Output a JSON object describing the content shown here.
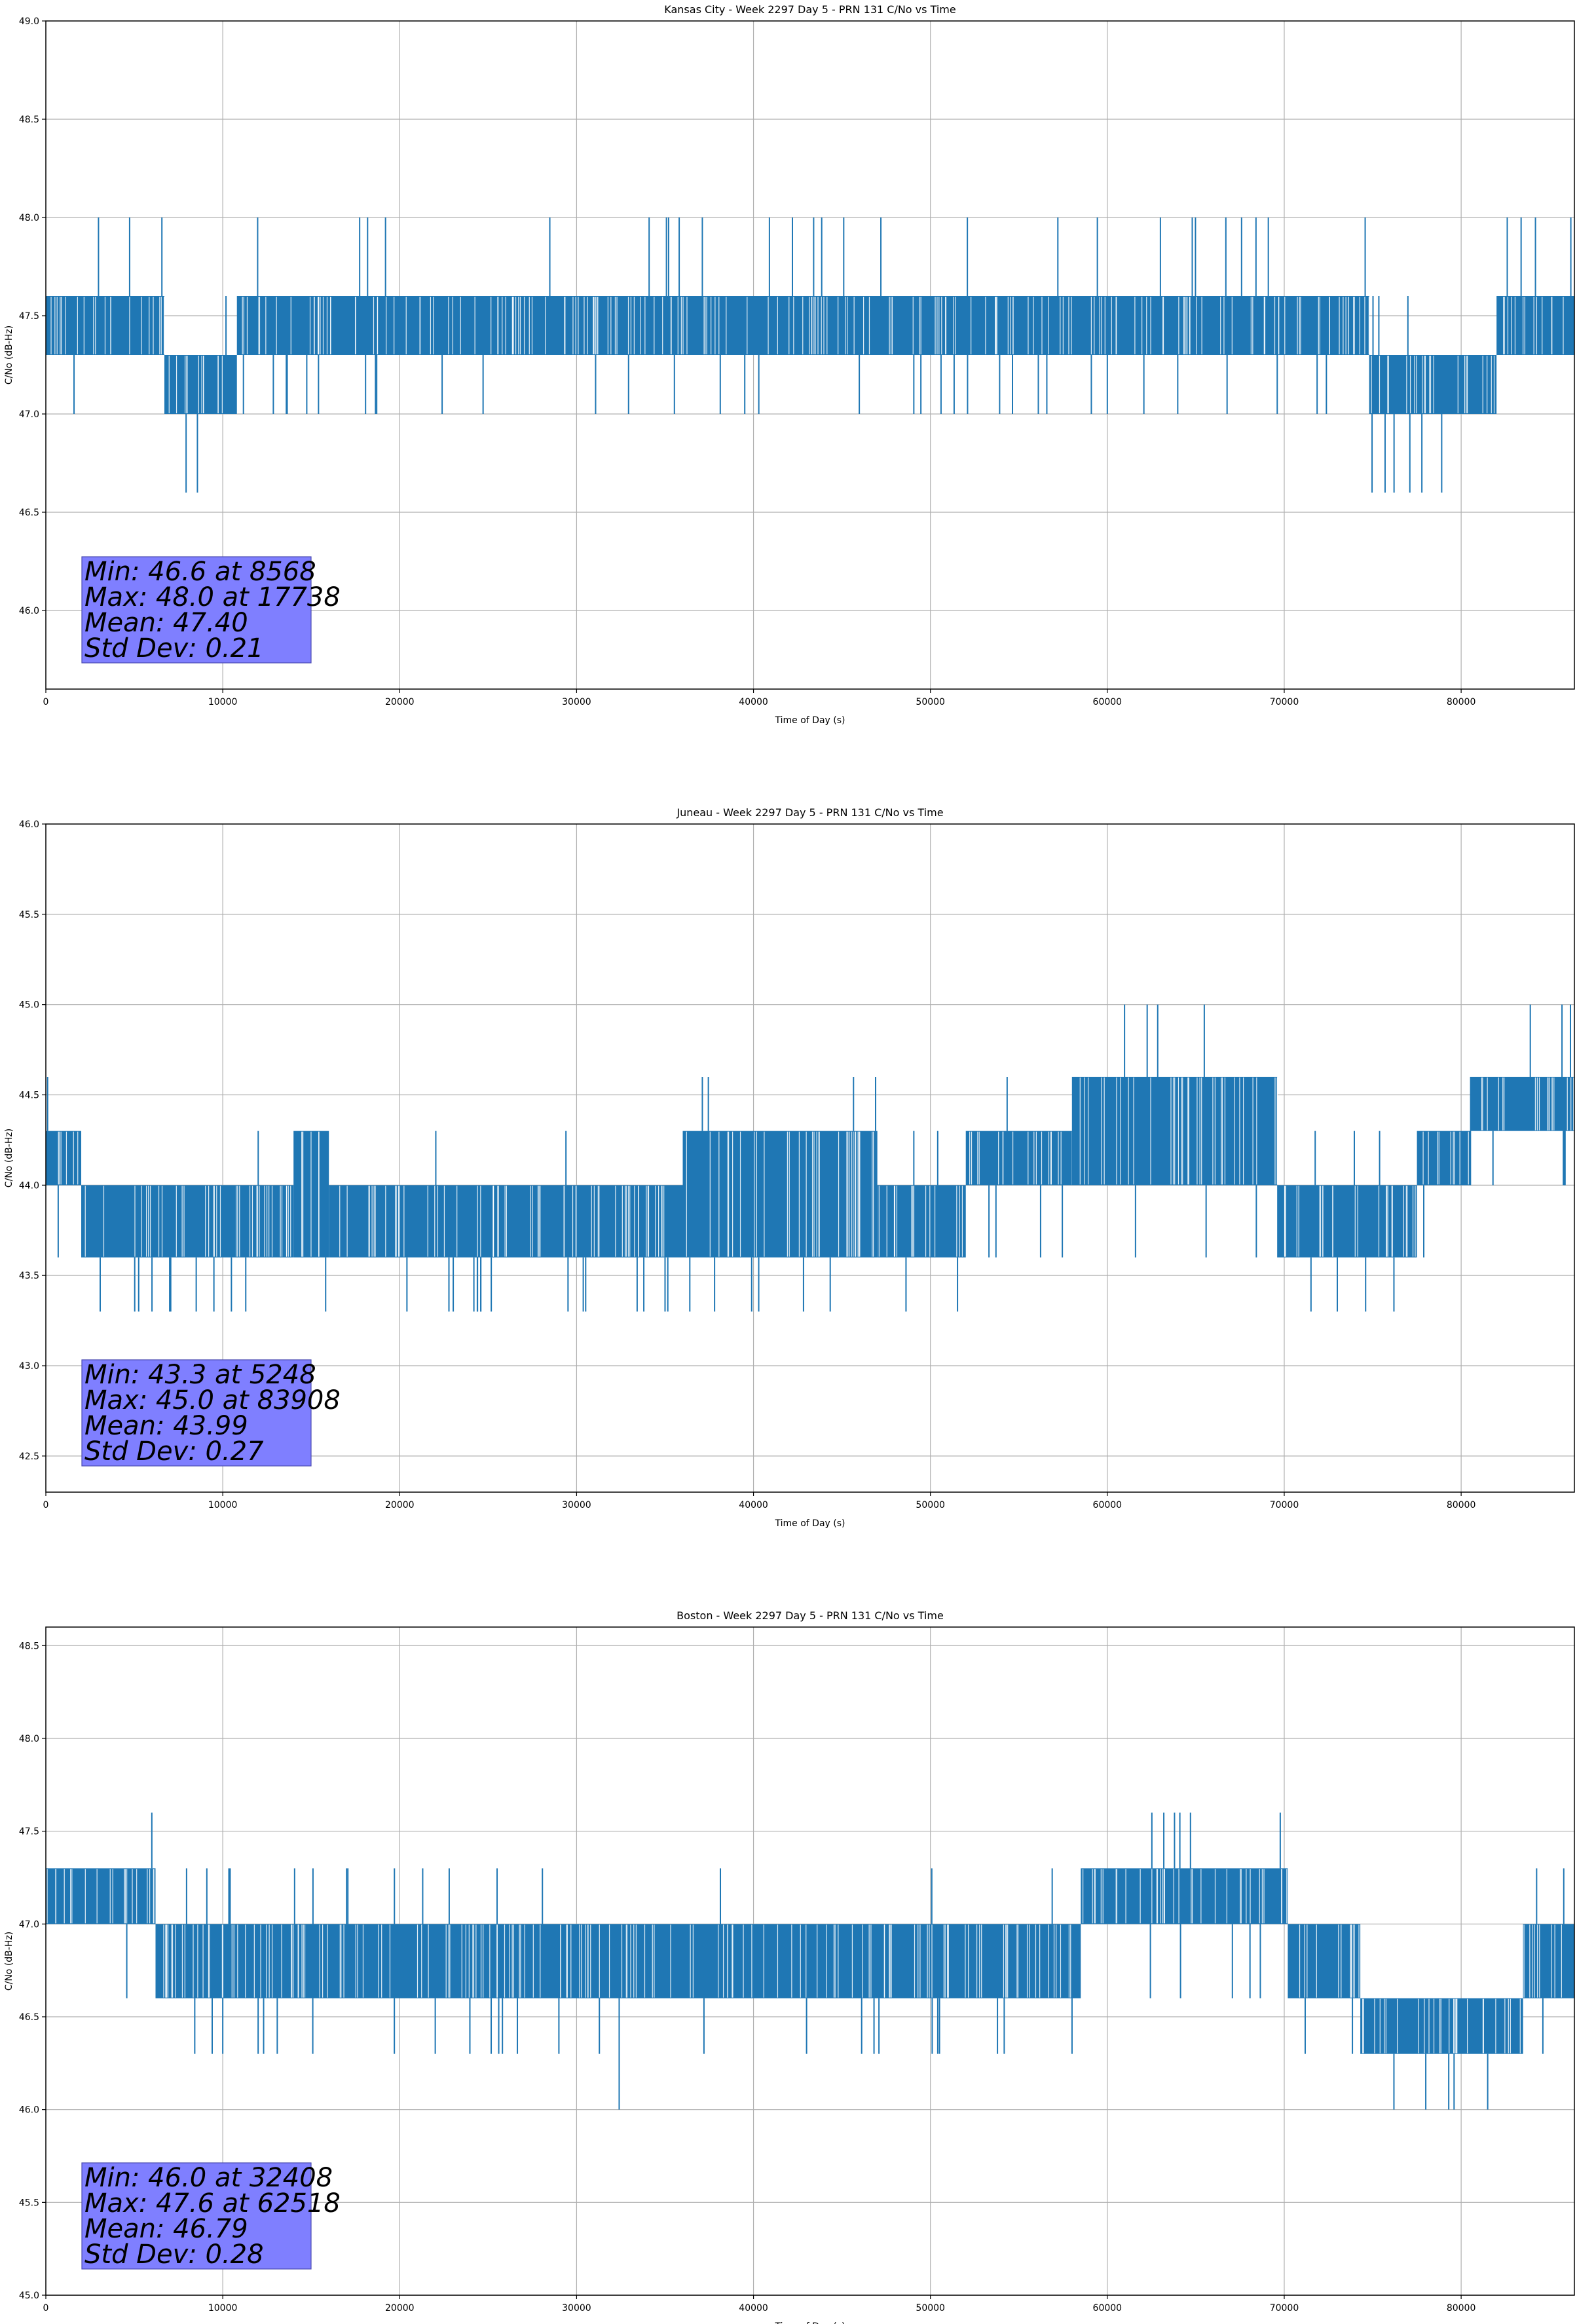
{
  "chart_data": [
    {
      "type": "line",
      "title": "Kansas City - Week 2297 Day 5 - PRN 131 C/No vs Time",
      "xlabel": "Time of Day (s)",
      "ylabel": "C/No (dB-Hz)",
      "xlim": [
        0,
        86400
      ],
      "ylim": [
        45.6,
        49.0
      ],
      "xticks": [
        0,
        10000,
        20000,
        30000,
        40000,
        50000,
        60000,
        70000,
        80000
      ],
      "xtick_labels": [
        "0",
        "10000",
        "20000",
        "30000",
        "40000",
        "50000",
        "60000",
        "70000",
        "80000"
      ],
      "yticks": [
        46.0,
        46.5,
        47.0,
        47.5,
        48.0,
        48.5,
        49.0
      ],
      "ytick_labels": [
        "46.0",
        "46.5",
        "47.0",
        "47.5",
        "48.0",
        "48.5",
        "49.0"
      ],
      "grid": true,
      "color": "#1f77b4",
      "levels": [
        46.6,
        47.0,
        47.3,
        47.6,
        48.0
      ],
      "band_segments": [
        {
          "x0": 0,
          "x1": 6700,
          "lo": 47.3,
          "hi": 47.6
        },
        {
          "x0": 6700,
          "x1": 10800,
          "lo": 47.0,
          "hi": 47.3
        },
        {
          "x0": 10800,
          "x1": 74800,
          "lo": 47.3,
          "hi": 47.6
        },
        {
          "x0": 74800,
          "x1": 82000,
          "lo": 47.0,
          "hi": 47.3
        },
        {
          "x0": 82000,
          "x1": 86400,
          "lo": 47.3,
          "hi": 47.6
        }
      ],
      "spikes": [
        {
          "x": 8568,
          "y": 46.6
        },
        {
          "x": 17738,
          "y": 48.0
        },
        {
          "x": 19200,
          "y": 48.0
        },
        {
          "x": 22400,
          "y": 47.0
        },
        {
          "x": 34100,
          "y": 48.0
        },
        {
          "x": 35200,
          "y": 48.0
        },
        {
          "x": 35800,
          "y": 48.0
        },
        {
          "x": 40300,
          "y": 47.0
        },
        {
          "x": 40900,
          "y": 48.0
        },
        {
          "x": 42200,
          "y": 48.0
        },
        {
          "x": 43400,
          "y": 48.0
        },
        {
          "x": 45100,
          "y": 48.0
        },
        {
          "x": 47200,
          "y": 48.0
        },
        {
          "x": 50600,
          "y": 47.0
        },
        {
          "x": 52100,
          "y": 47.0
        },
        {
          "x": 56100,
          "y": 47.0
        },
        {
          "x": 60000,
          "y": 47.0
        },
        {
          "x": 63000,
          "y": 48.0
        },
        {
          "x": 64800,
          "y": 48.0
        },
        {
          "x": 66700,
          "y": 48.0
        },
        {
          "x": 69100,
          "y": 48.0
        },
        {
          "x": 75700,
          "y": 46.6
        },
        {
          "x": 77100,
          "y": 46.6
        },
        {
          "x": 78900,
          "y": 46.6
        },
        {
          "x": 84200,
          "y": 48.0
        },
        {
          "x": 86200,
          "y": 48.0
        }
      ],
      "stats": {
        "min": "Min: 46.6 at 8568",
        "max": "Max: 48.0 at 17738",
        "mean": "Mean: 47.40",
        "std": "Std Dev: 0.21"
      }
    },
    {
      "type": "line",
      "title": "Juneau - Week 2297 Day 5 - PRN 131 C/No vs Time",
      "xlabel": "Time of Day (s)",
      "ylabel": "C/No (dB-Hz)",
      "xlim": [
        0,
        86400
      ],
      "ylim": [
        42.3,
        46.0
      ],
      "xticks": [
        0,
        10000,
        20000,
        30000,
        40000,
        50000,
        60000,
        70000,
        80000
      ],
      "xtick_labels": [
        "0",
        "10000",
        "20000",
        "30000",
        "40000",
        "50000",
        "60000",
        "70000",
        "80000"
      ],
      "yticks": [
        42.5,
        43.0,
        43.5,
        44.0,
        44.5,
        45.0,
        45.5,
        46.0
      ],
      "ytick_labels": [
        "42.5",
        "43.0",
        "43.5",
        "44.0",
        "44.5",
        "45.0",
        "45.5",
        "46.0"
      ],
      "grid": true,
      "color": "#1f77b4",
      "levels": [
        43.3,
        43.6,
        44.0,
        44.3,
        44.6,
        45.0
      ],
      "band_segments": [
        {
          "x0": 0,
          "x1": 2000,
          "lo": 44.0,
          "hi": 44.3
        },
        {
          "x0": 2000,
          "x1": 14000,
          "lo": 43.6,
          "hi": 44.0
        },
        {
          "x0": 14000,
          "x1": 16000,
          "lo": 43.6,
          "hi": 44.3
        },
        {
          "x0": 16000,
          "x1": 36000,
          "lo": 43.6,
          "hi": 44.0
        },
        {
          "x0": 36000,
          "x1": 47000,
          "lo": 43.6,
          "hi": 44.3
        },
        {
          "x0": 47000,
          "x1": 52000,
          "lo": 43.6,
          "hi": 44.0
        },
        {
          "x0": 52000,
          "x1": 58000,
          "lo": 44.0,
          "hi": 44.3
        },
        {
          "x0": 58000,
          "x1": 69600,
          "lo": 44.0,
          "hi": 44.6
        },
        {
          "x0": 69600,
          "x1": 77500,
          "lo": 43.6,
          "hi": 44.0
        },
        {
          "x0": 77500,
          "x1": 80500,
          "lo": 44.0,
          "hi": 44.3
        },
        {
          "x0": 80500,
          "x1": 86400,
          "lo": 44.3,
          "hi": 44.6
        }
      ],
      "spikes": [
        {
          "x": 5248,
          "y": 43.3
        },
        {
          "x": 6000,
          "y": 43.3
        },
        {
          "x": 7000,
          "y": 43.3
        },
        {
          "x": 8500,
          "y": 43.3
        },
        {
          "x": 9500,
          "y": 43.3
        },
        {
          "x": 11300,
          "y": 43.3
        },
        {
          "x": 24400,
          "y": 43.3
        },
        {
          "x": 33800,
          "y": 43.3
        },
        {
          "x": 35000,
          "y": 43.3
        },
        {
          "x": 36400,
          "y": 43.3
        },
        {
          "x": 37800,
          "y": 43.3
        },
        {
          "x": 73000,
          "y": 43.3
        },
        {
          "x": 74600,
          "y": 43.3
        },
        {
          "x": 76200,
          "y": 43.3
        },
        {
          "x": 83908,
          "y": 45.0
        },
        {
          "x": 85700,
          "y": 45.0
        },
        {
          "x": 100,
          "y": 44.6
        }
      ],
      "stats": {
        "min": "Min: 43.3 at 5248",
        "max": "Max: 45.0 at 83908",
        "mean": "Mean: 43.99",
        "std": "Std Dev: 0.27"
      }
    },
    {
      "type": "line",
      "title": "Boston - Week 2297 Day 5 - PRN 131 C/No vs Time",
      "xlabel": "Time of Day (s)",
      "ylabel": "C/No (dB-Hz)",
      "xlim": [
        0,
        86400
      ],
      "ylim": [
        45.0,
        48.6
      ],
      "xticks": [
        0,
        10000,
        20000,
        30000,
        40000,
        50000,
        60000,
        70000,
        80000
      ],
      "xtick_labels": [
        "0",
        "10000",
        "20000",
        "30000",
        "40000",
        "50000",
        "60000",
        "70000",
        "80000"
      ],
      "yticks": [
        45.0,
        45.5,
        46.0,
        46.5,
        47.0,
        47.5,
        48.0,
        48.5
      ],
      "ytick_labels": [
        "45.0",
        "45.5",
        "46.0",
        "46.5",
        "47.0",
        "47.5",
        "48.0",
        "48.5"
      ],
      "grid": true,
      "color": "#1f77b4",
      "levels": [
        46.0,
        46.3,
        46.6,
        47.0,
        47.3,
        47.6
      ],
      "band_segments": [
        {
          "x0": 0,
          "x1": 6200,
          "lo": 47.0,
          "hi": 47.3
        },
        {
          "x0": 6200,
          "x1": 58500,
          "lo": 46.6,
          "hi": 47.0
        },
        {
          "x0": 58500,
          "x1": 70200,
          "lo": 47.0,
          "hi": 47.3
        },
        {
          "x0": 70200,
          "x1": 74300,
          "lo": 46.6,
          "hi": 47.0
        },
        {
          "x0": 74300,
          "x1": 83500,
          "lo": 46.3,
          "hi": 46.6
        },
        {
          "x0": 83500,
          "x1": 86400,
          "lo": 46.6,
          "hi": 47.0
        }
      ],
      "spikes": [
        {
          "x": 9100,
          "y": 47.3
        },
        {
          "x": 10000,
          "y": 46.3
        },
        {
          "x": 12000,
          "y": 46.3
        },
        {
          "x": 15100,
          "y": 47.3
        },
        {
          "x": 17000,
          "y": 47.3
        },
        {
          "x": 19700,
          "y": 46.3
        },
        {
          "x": 22800,
          "y": 47.3
        },
        {
          "x": 25600,
          "y": 46.3
        },
        {
          "x": 29000,
          "y": 46.3
        },
        {
          "x": 32408,
          "y": 46.0
        },
        {
          "x": 37200,
          "y": 46.3
        },
        {
          "x": 43000,
          "y": 46.3
        },
        {
          "x": 50100,
          "y": 46.3
        },
        {
          "x": 62518,
          "y": 47.6
        },
        {
          "x": 64100,
          "y": 47.6
        },
        {
          "x": 64700,
          "y": 47.6
        },
        {
          "x": 76200,
          "y": 46.0
        },
        {
          "x": 78000,
          "y": 46.0
        },
        {
          "x": 79600,
          "y": 46.0
        },
        {
          "x": 81500,
          "y": 46.0
        },
        {
          "x": 85800,
          "y": 47.3
        }
      ],
      "stats": {
        "min": "Min: 46.0 at 32408",
        "max": "Max: 47.6 at 62518",
        "mean": "Mean: 46.79",
        "std": "Std Dev: 0.28"
      }
    }
  ]
}
